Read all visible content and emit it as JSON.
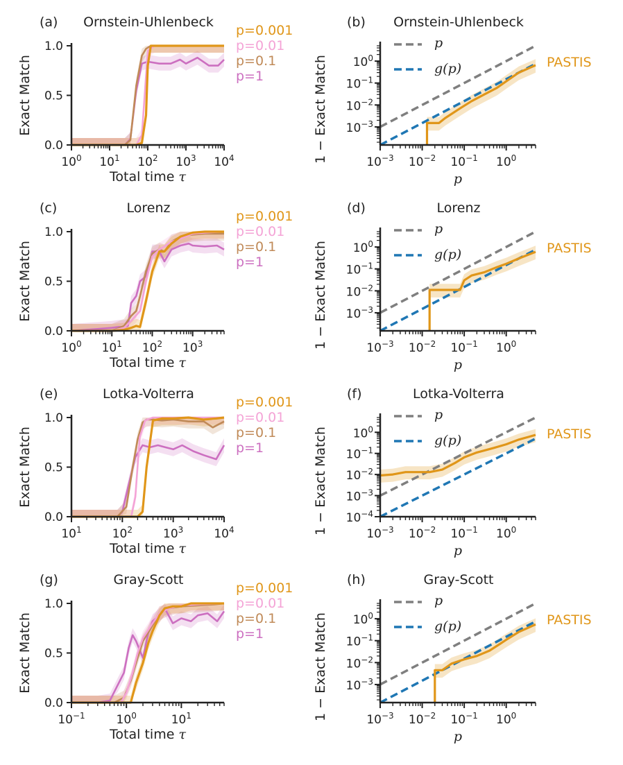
{
  "colors": {
    "p0001": "#e09619",
    "p001": "#f4a3d6",
    "p01": "#c08a58",
    "p1": "#cc6fc0",
    "dash_p": "#7f7f7f",
    "dash_g": "#1f77b4",
    "pastis": "#e09619",
    "axis": "#222222"
  },
  "legend_left": [
    "p=0.001",
    "p=0.01",
    "p=0.1",
    "p=1"
  ],
  "legend_right": {
    "p_label": "p",
    "g_label": "g(p)",
    "pastis_label": "PASTIS"
  },
  "chart_data": [
    {
      "panel": "(a)",
      "title": "Ornstein-Uhlenbeck",
      "type": "line",
      "scale": "logx",
      "xlabel": "Total time τ",
      "ylabel": "Exact Match",
      "xlim": [
        1,
        10000
      ],
      "ylim": [
        0,
        1
      ],
      "xtick_exps": [
        "0",
        "1",
        "2",
        "3",
        "4"
      ],
      "ytick_labels": [
        "0.0",
        "0.5",
        "1.0"
      ],
      "ytick_values": [
        0,
        0.5,
        1
      ],
      "series": [
        {
          "name": "p=0.001",
          "x": [
            1,
            10,
            30,
            50,
            70,
            90,
            100,
            120,
            150,
            300,
            1000,
            3000,
            10000
          ],
          "y": [
            0,
            0,
            0,
            0,
            0.02,
            0.3,
            0.8,
            1,
            1,
            1,
            1,
            1,
            1
          ]
        },
        {
          "name": "p=0.01",
          "x": [
            1,
            10,
            30,
            50,
            70,
            90,
            100,
            150,
            300,
            1000,
            3000,
            10000
          ],
          "y": [
            0,
            0,
            0,
            0,
            0.1,
            0.7,
            0.95,
            1,
            1,
            1,
            1,
            1
          ]
        },
        {
          "name": "p=0.1",
          "x": [
            1,
            10,
            25,
            35,
            50,
            70,
            90,
            120,
            200,
            1000,
            10000
          ],
          "y": [
            0,
            0,
            0,
            0.05,
            0.6,
            0.9,
            0.97,
            1,
            1,
            1,
            1
          ]
        },
        {
          "name": "p=1",
          "x": [
            1,
            10,
            25,
            35,
            50,
            70,
            100,
            200,
            400,
            700,
            1000,
            2000,
            4000,
            7000,
            10000
          ],
          "y": [
            0,
            0,
            0,
            0.06,
            0.55,
            0.82,
            0.84,
            0.82,
            0.82,
            0.86,
            0.82,
            0.88,
            0.8,
            0.8,
            0.86
          ]
        }
      ]
    },
    {
      "panel": "(b)",
      "title": "Ornstein-Uhlenbeck",
      "type": "line",
      "scale": "loglog",
      "xlabel": "p",
      "ylabel": "1 − Exact Match",
      "xlim": [
        0.001,
        5
      ],
      "ylim": [
        0.00015,
        5
      ],
      "xtick_exps": [
        "−3",
        "−2",
        "−1",
        "0"
      ],
      "ytick_exps": [
        "−3",
        "−2",
        "−1",
        "0"
      ],
      "series": [
        {
          "name": "p",
          "x": [
            0.001,
            5
          ],
          "y": [
            0.001,
            5
          ]
        },
        {
          "name": "g(p)",
          "x": [
            0.001,
            5
          ],
          "y": [
            0.00015,
            0.75
          ]
        },
        {
          "name": "PASTIS",
          "x": [
            0.013,
            0.013,
            0.025,
            0.035,
            0.08,
            0.15,
            0.3,
            0.6,
            1,
            2,
            5
          ],
          "y": [
            0.00015,
            0.0015,
            0.0015,
            0.0025,
            0.007,
            0.015,
            0.03,
            0.06,
            0.12,
            0.3,
            0.65
          ]
        }
      ]
    },
    {
      "panel": "(c)",
      "title": "Lorenz",
      "type": "line",
      "scale": "logx",
      "xlabel": "Total time τ",
      "ylabel": "Exact Match",
      "xlim": [
        1,
        6000
      ],
      "ylim": [
        0,
        1
      ],
      "xtick_exps": [
        "0",
        "1",
        "2",
        "3"
      ],
      "ytick_labels": [
        "0.0",
        "0.5",
        "1.0"
      ],
      "ytick_values": [
        0,
        0.5,
        1
      ],
      "series": [
        {
          "name": "p=0.001",
          "x": [
            1,
            10,
            20,
            30,
            40,
            50,
            70,
            100,
            150,
            200,
            300,
            500,
            1000,
            2000,
            4000,
            6000
          ],
          "y": [
            0,
            0,
            0.01,
            0.03,
            0.05,
            0.04,
            0.3,
            0.6,
            0.8,
            0.8,
            0.88,
            0.95,
            0.99,
            1,
            1,
            1
          ]
        },
        {
          "name": "p=0.01",
          "x": [
            1,
            10,
            20,
            30,
            50,
            70,
            100,
            150,
            200,
            300,
            500,
            1000,
            2000,
            6000
          ],
          "y": [
            0,
            0,
            0.03,
            0.1,
            0.2,
            0.5,
            0.75,
            0.82,
            0.85,
            0.9,
            0.93,
            0.98,
            0.99,
            1
          ]
        },
        {
          "name": "p=0.1",
          "x": [
            1,
            10,
            20,
            30,
            40,
            50,
            70,
            100,
            150,
            200,
            300,
            500,
            1000,
            2000,
            6000
          ],
          "y": [
            0,
            0,
            0.05,
            0.15,
            0.2,
            0.35,
            0.6,
            0.78,
            0.82,
            0.8,
            0.9,
            0.95,
            0.97,
            0.98,
            0.98
          ]
        },
        {
          "name": "p=1",
          "x": [
            1,
            5,
            10,
            15,
            20,
            25,
            30,
            40,
            50,
            70,
            100,
            150,
            200,
            300,
            500,
            800,
            1000,
            2000,
            4000,
            6000
          ],
          "y": [
            0,
            0.02,
            0.03,
            0.04,
            0.04,
            0.05,
            0.28,
            0.35,
            0.5,
            0.55,
            0.8,
            0.8,
            0.7,
            0.82,
            0.86,
            0.88,
            0.86,
            0.85,
            0.86,
            0.82
          ]
        }
      ]
    },
    {
      "panel": "(d)",
      "title": "Lorenz",
      "type": "line",
      "scale": "loglog",
      "xlabel": "p",
      "ylabel": "1 − Exact Match",
      "xlim": [
        0.001,
        5
      ],
      "ylim": [
        0.00015,
        5
      ],
      "xtick_exps": [
        "−3",
        "−2",
        "−1",
        "0"
      ],
      "ytick_exps": [
        "−3",
        "−2",
        "−1",
        "0"
      ],
      "series": [
        {
          "name": "p",
          "x": [
            0.001,
            5
          ],
          "y": [
            0.001,
            5
          ]
        },
        {
          "name": "g(p)",
          "x": [
            0.001,
            5
          ],
          "y": [
            0.00015,
            0.75
          ]
        },
        {
          "name": "PASTIS",
          "x": [
            0.015,
            0.015,
            0.08,
            0.1,
            0.15,
            0.3,
            0.6,
            1,
            2,
            5
          ],
          "y": [
            0.00015,
            0.011,
            0.011,
            0.03,
            0.05,
            0.07,
            0.12,
            0.17,
            0.3,
            0.6
          ]
        }
      ]
    },
    {
      "panel": "(e)",
      "title": "Lotka-Volterra",
      "type": "line",
      "scale": "logx",
      "xlabel": "Total time τ",
      "ylabel": "Exact Match",
      "xlim": [
        10,
        10000
      ],
      "ylim": [
        0,
        1
      ],
      "xtick_exps": [
        "1",
        "2",
        "3",
        "4"
      ],
      "ytick_labels": [
        "0.0",
        "0.5",
        "1.0"
      ],
      "ytick_values": [
        0,
        0.5,
        1
      ],
      "series": [
        {
          "name": "p=0.001",
          "x": [
            10,
            80,
            150,
            200,
            250,
            300,
            400,
            600,
            1000,
            2000,
            4000,
            7000,
            10000
          ],
          "y": [
            0,
            0,
            0,
            0,
            0.05,
            0.5,
            0.97,
            0.99,
            0.99,
            1,
            0.98,
            0.99,
            1
          ]
        },
        {
          "name": "p=0.01",
          "x": [
            10,
            80,
            150,
            180,
            220,
            280,
            400,
            1000,
            10000
          ],
          "y": [
            0,
            0,
            0,
            0.2,
            0.8,
            0.97,
            1,
            1,
            1
          ]
        },
        {
          "name": "p=0.1",
          "x": [
            10,
            80,
            120,
            160,
            200,
            250,
            300,
            400,
            600,
            1000,
            2000,
            4000,
            6000,
            10000
          ],
          "y": [
            0,
            0,
            0.1,
            0.5,
            0.78,
            0.95,
            0.98,
            0.98,
            0.97,
            0.98,
            0.96,
            0.96,
            0.9,
            0.96
          ]
        },
        {
          "name": "p=1",
          "x": [
            10,
            80,
            100,
            130,
            180,
            250,
            350,
            500,
            700,
            1000,
            1500,
            2500,
            4000,
            7000,
            10000
          ],
          "y": [
            0,
            0,
            0.05,
            0.3,
            0.6,
            0.72,
            0.7,
            0.72,
            0.7,
            0.68,
            0.72,
            0.66,
            0.62,
            0.58,
            0.72
          ]
        }
      ]
    },
    {
      "panel": "(f)",
      "title": "Lotka-Volterra",
      "type": "line",
      "scale": "loglog",
      "xlabel": "p",
      "ylabel": "1 − Exact Match",
      "xlim": [
        0.001,
        5
      ],
      "ylim": [
        0.0001,
        5
      ],
      "xtick_exps": [
        "−3",
        "−2",
        "−1",
        "0"
      ],
      "ytick_exps": [
        "−4",
        "−3",
        "−2",
        "−1",
        "0"
      ],
      "series": [
        {
          "name": "p",
          "x": [
            0.001,
            5
          ],
          "y": [
            0.001,
            5
          ]
        },
        {
          "name": "g(p)",
          "x": [
            0.001,
            5
          ],
          "y": [
            0.0001,
            0.5
          ]
        },
        {
          "name": "PASTIS",
          "x": [
            0.001,
            0.002,
            0.004,
            0.008,
            0.015,
            0.03,
            0.06,
            0.1,
            0.2,
            0.5,
            1,
            2,
            5
          ],
          "y": [
            0.009,
            0.01,
            0.013,
            0.013,
            0.013,
            0.017,
            0.035,
            0.065,
            0.11,
            0.18,
            0.27,
            0.45,
            0.75
          ]
        }
      ]
    },
    {
      "panel": "(g)",
      "title": "Gray-Scott",
      "type": "line",
      "scale": "logx",
      "xlabel": "Total time τ",
      "ylabel": "Exact Match",
      "xlim": [
        0.1,
        60
      ],
      "ylim": [
        0,
        1
      ],
      "xtick_exps": [
        "−1",
        "0",
        "1"
      ],
      "ytick_labels": [
        "0.0",
        "0.5",
        "1.0"
      ],
      "ytick_values": [
        0,
        0.5,
        1
      ],
      "series": [
        {
          "name": "p=0.001",
          "x": [
            0.1,
            1,
            1.2,
            1.5,
            2,
            2.5,
            3,
            4,
            5,
            7,
            10,
            15,
            20,
            30,
            60
          ],
          "y": [
            0,
            0,
            0,
            0.2,
            0.4,
            0.6,
            0.72,
            0.88,
            0.95,
            0.97,
            0.97,
            1,
            1,
            1,
            1
          ]
        },
        {
          "name": "p=0.01",
          "x": [
            0.1,
            0.8,
            1,
            1.3,
            1.6,
            2,
            3,
            4,
            6,
            10,
            20,
            60
          ],
          "y": [
            0,
            0,
            0.1,
            0.3,
            0.5,
            0.65,
            0.8,
            0.9,
            0.95,
            0.98,
            0.99,
            1
          ]
        },
        {
          "name": "p=0.1",
          "x": [
            0.1,
            0.6,
            0.9,
            1.2,
            1.6,
            2,
            3,
            4,
            6,
            10,
            20,
            40,
            60
          ],
          "y": [
            0,
            0,
            0.05,
            0.22,
            0.45,
            0.62,
            0.78,
            0.9,
            0.95,
            0.97,
            0.98,
            0.99,
            1
          ]
        },
        {
          "name": "p=1",
          "x": [
            0.1,
            0.3,
            0.5,
            0.7,
            0.9,
            1.1,
            1.3,
            1.5,
            2,
            2.5,
            3,
            4,
            5,
            7,
            10,
            15,
            20,
            30,
            45,
            60
          ],
          "y": [
            0,
            0,
            0.02,
            0.18,
            0.3,
            0.55,
            0.68,
            0.62,
            0.45,
            0.7,
            0.82,
            0.88,
            0.95,
            0.8,
            0.85,
            0.82,
            0.88,
            0.9,
            0.82,
            0.92
          ]
        }
      ]
    },
    {
      "panel": "(h)",
      "title": "Gray-Scott",
      "type": "line",
      "scale": "loglog",
      "xlabel": "p",
      "ylabel": "1 − Exact Match",
      "xlim": [
        0.001,
        5
      ],
      "ylim": [
        0.00015,
        5
      ],
      "xtick_exps": [
        "−3",
        "−2",
        "−1",
        "0"
      ],
      "ytick_exps": [
        "−3",
        "−2",
        "−1",
        "0"
      ],
      "series": [
        {
          "name": "p",
          "x": [
            0.001,
            5
          ],
          "y": [
            0.001,
            5
          ]
        },
        {
          "name": "g(p)",
          "x": [
            0.001,
            5
          ],
          "y": [
            0.00015,
            0.75
          ]
        },
        {
          "name": "PASTIS",
          "x": [
            0.02,
            0.02,
            0.03,
            0.05,
            0.1,
            0.2,
            0.4,
            0.7,
            1,
            2,
            5
          ],
          "y": [
            0.00015,
            0.0045,
            0.0045,
            0.009,
            0.014,
            0.02,
            0.035,
            0.07,
            0.11,
            0.25,
            0.55
          ]
        }
      ]
    }
  ]
}
